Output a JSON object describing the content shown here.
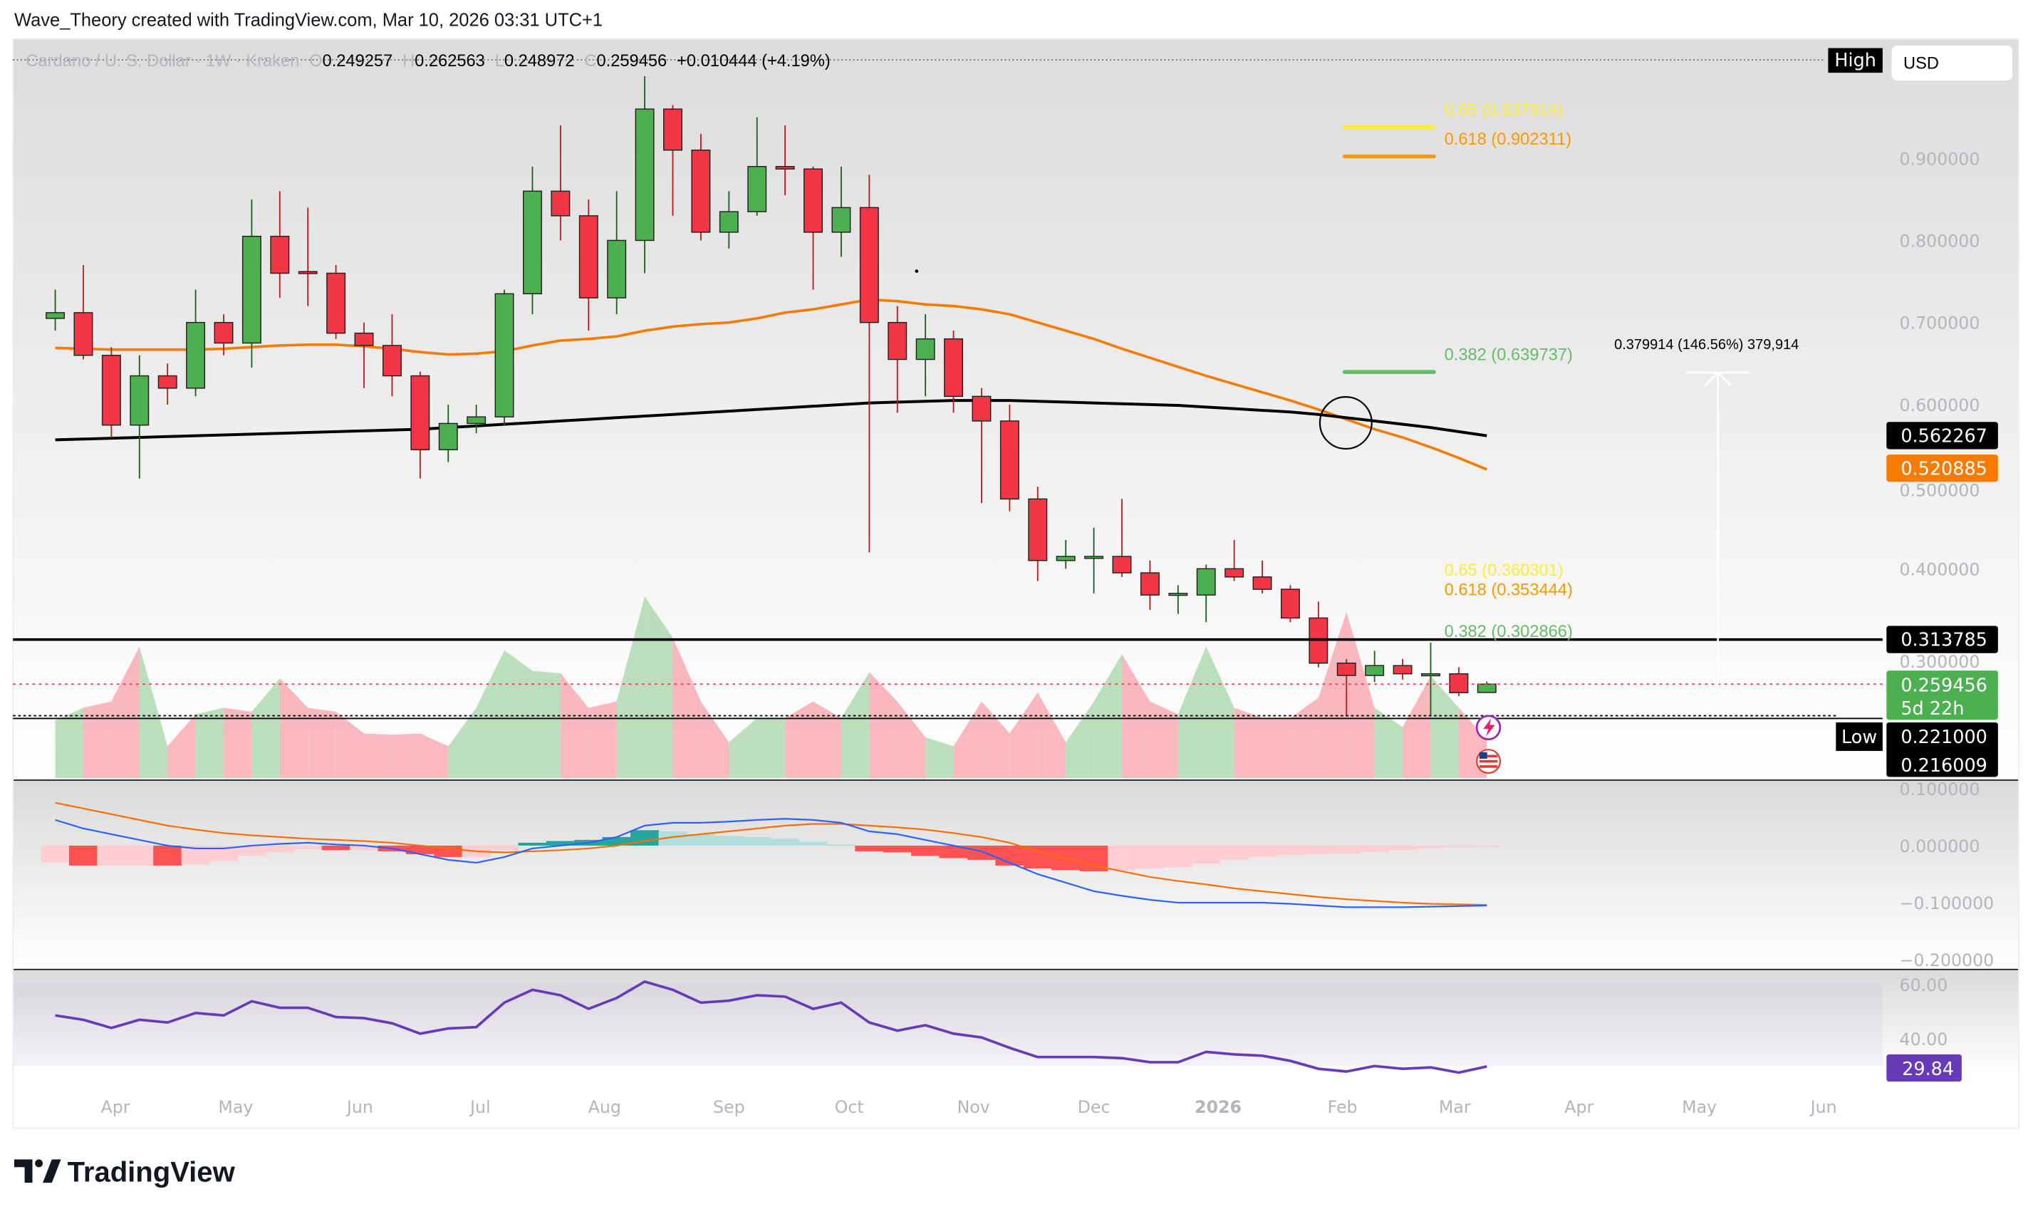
{
  "header": {
    "credit": "Wave_Theory created with TradingView.com, Mar 10, 2026 03:31 UTC+1"
  },
  "legend": {
    "symbol": "Cardano / U. S. Dollar · 1W · Kraken",
    "o_label": "O",
    "open": "0.249257",
    "h_label": "H",
    "high": "0.262563",
    "l_label": "L",
    "low": "0.248972",
    "c_label": "C",
    "close": "0.259456",
    "change": "+0.010444 (+4.19%)"
  },
  "toolbar": {
    "high_label": "High",
    "low_label": "Low",
    "currency": "USD"
  },
  "colors": {
    "up": "#4caf50",
    "down": "#f23645",
    "ema": "#f57c00",
    "sma": "#000000",
    "rsi": "#673ab7",
    "macd": "#2962ff",
    "signal": "#ff6d00",
    "fib_065": "#ffeb3b",
    "fib_0618": "#ff9800",
    "fib_0382": "#66bb6a"
  },
  "price_axis": {
    "ticks": [
      "0.900000",
      "0.800000",
      "0.700000",
      "0.600000",
      "0.500000",
      "0.400000",
      "0.300000"
    ],
    "tick_values": [
      0.9,
      0.8,
      0.7,
      0.6,
      0.5,
      0.4,
      0.3
    ],
    "badges": {
      "sma": "0.562267",
      "ema": "0.520885",
      "resistance": "0.313785",
      "last": "0.259456",
      "countdown": "5d 22h",
      "low_line": "0.221000",
      "low_price": "0.216009"
    }
  },
  "macd_axis": {
    "ticks": [
      "0.100000",
      "0.000000",
      "−0.100000",
      "−0.200000"
    ],
    "tick_values": [
      0.1,
      0,
      -0.1,
      -0.2
    ]
  },
  "rsi_axis": {
    "ticks": [
      "60.00",
      "40.00"
    ],
    "tick_values": [
      60,
      40
    ],
    "current": "29.84"
  },
  "time_axis": {
    "labels": [
      "Apr",
      "May",
      "Jun",
      "Jul",
      "Aug",
      "Sep",
      "Oct",
      "Nov",
      "Dec",
      "2026",
      "Feb",
      "Mar",
      "Apr",
      "May",
      "Jun"
    ],
    "dates": [
      "2025-04-01",
      "2025-05-01",
      "2025-06-01",
      "2025-07-01",
      "2025-08-01",
      "2025-09-01",
      "2025-10-01",
      "2025-11-01",
      "2025-12-01",
      "2026-01-01",
      "2026-02-01",
      "2026-03-01",
      "2026-04-01",
      "2026-05-01",
      "2026-06-01"
    ]
  },
  "fib_upper": [
    {
      "label": "0.65 (0.937914)",
      "price": 0.937914,
      "key": "fib_065"
    },
    {
      "label": "0.618 (0.902311)",
      "price": 0.902311,
      "key": "fib_0618"
    },
    {
      "label": "0.382 (0.639737)",
      "price": 0.639737,
      "key": "fib_0382"
    }
  ],
  "fib_lower": [
    {
      "label": "0.65 (0.360301)",
      "price": 0.360301,
      "key": "fib_065"
    },
    {
      "label": "0.618 (0.353444)",
      "price": 0.353444,
      "key": "fib_0618"
    },
    {
      "label": "0.382 (0.302866)",
      "price": 0.302866,
      "key": "fib_0382"
    }
  ],
  "measure": {
    "label": "0.379914 (146.56%) 379,914",
    "from": 0.259,
    "to": 0.639
  },
  "levels": {
    "resistance": 0.313785,
    "last": 0.259456,
    "low_line": 0.221,
    "low_price": 0.216009
  },
  "chart_data": {
    "type": "candlestick",
    "interval": "1W",
    "price_range": [
      0.1,
      1.0
    ],
    "candles_fields": [
      "date",
      "open",
      "high",
      "low",
      "close"
    ],
    "candles": [
      [
        "2025-03-17",
        0.705,
        0.74,
        0.69,
        0.712
      ],
      [
        "2025-03-24",
        0.712,
        0.77,
        0.655,
        0.66
      ],
      [
        "2025-03-31",
        0.66,
        0.67,
        0.56,
        0.575
      ],
      [
        "2025-04-07",
        0.575,
        0.66,
        0.51,
        0.635
      ],
      [
        "2025-04-14",
        0.635,
        0.65,
        0.6,
        0.62
      ],
      [
        "2025-04-21",
        0.62,
        0.74,
        0.61,
        0.7
      ],
      [
        "2025-04-28",
        0.7,
        0.71,
        0.66,
        0.675
      ],
      [
        "2025-05-05",
        0.675,
        0.85,
        0.645,
        0.805
      ],
      [
        "2025-05-12",
        0.805,
        0.86,
        0.73,
        0.76
      ],
      [
        "2025-05-19",
        0.762,
        0.84,
        0.72,
        0.76
      ],
      [
        "2025-05-26",
        0.76,
        0.77,
        0.68,
        0.687
      ],
      [
        "2025-06-02",
        0.687,
        0.7,
        0.62,
        0.672
      ],
      [
        "2025-06-09",
        0.672,
        0.71,
        0.61,
        0.635
      ],
      [
        "2025-06-16",
        0.635,
        0.64,
        0.51,
        0.545
      ],
      [
        "2025-06-23",
        0.545,
        0.6,
        0.53,
        0.577
      ],
      [
        "2025-06-30",
        0.577,
        0.6,
        0.565,
        0.585
      ],
      [
        "2025-07-07",
        0.585,
        0.74,
        0.575,
        0.735
      ],
      [
        "2025-07-14",
        0.735,
        0.89,
        0.71,
        0.86
      ],
      [
        "2025-07-21",
        0.86,
        0.94,
        0.8,
        0.83
      ],
      [
        "2025-07-28",
        0.83,
        0.85,
        0.69,
        0.73
      ],
      [
        "2025-08-04",
        0.73,
        0.86,
        0.71,
        0.8
      ],
      [
        "2025-08-11",
        0.8,
        1.0,
        0.76,
        0.96
      ],
      [
        "2025-08-18",
        0.96,
        0.965,
        0.83,
        0.91
      ],
      [
        "2025-08-25",
        0.91,
        0.93,
        0.8,
        0.81
      ],
      [
        "2025-09-01",
        0.81,
        0.86,
        0.79,
        0.835
      ],
      [
        "2025-09-08",
        0.835,
        0.95,
        0.83,
        0.89
      ],
      [
        "2025-09-15",
        0.89,
        0.94,
        0.855,
        0.887
      ],
      [
        "2025-09-22",
        0.887,
        0.89,
        0.74,
        0.81
      ],
      [
        "2025-09-29",
        0.81,
        0.89,
        0.78,
        0.84
      ],
      [
        "2025-10-06",
        0.84,
        0.88,
        0.42,
        0.7
      ],
      [
        "2025-10-13",
        0.7,
        0.72,
        0.59,
        0.655
      ],
      [
        "2025-10-20",
        0.655,
        0.71,
        0.61,
        0.68
      ],
      [
        "2025-10-27",
        0.68,
        0.69,
        0.59,
        0.61
      ],
      [
        "2025-11-03",
        0.61,
        0.62,
        0.48,
        0.58
      ],
      [
        "2025-11-10",
        0.58,
        0.6,
        0.47,
        0.485
      ],
      [
        "2025-11-17",
        0.485,
        0.5,
        0.385,
        0.41
      ],
      [
        "2025-11-24",
        0.41,
        0.435,
        0.4,
        0.415
      ],
      [
        "2025-12-01",
        0.415,
        0.45,
        0.37,
        0.415
      ],
      [
        "2025-12-08",
        0.415,
        0.485,
        0.39,
        0.395
      ],
      [
        "2025-12-15",
        0.395,
        0.41,
        0.35,
        0.368
      ],
      [
        "2025-12-22",
        0.368,
        0.38,
        0.345,
        0.37
      ],
      [
        "2025-12-29",
        0.368,
        0.405,
        0.335,
        0.4
      ],
      [
        "2026-01-05",
        0.4,
        0.435,
        0.385,
        0.39
      ],
      [
        "2026-01-12",
        0.39,
        0.41,
        0.37,
        0.375
      ],
      [
        "2026-01-19",
        0.375,
        0.38,
        0.335,
        0.34
      ],
      [
        "2026-01-26",
        0.34,
        0.36,
        0.28,
        0.285
      ],
      [
        "2026-02-02",
        0.285,
        0.29,
        0.22,
        0.27
      ],
      [
        "2026-02-09",
        0.27,
        0.3,
        0.262,
        0.282
      ],
      [
        "2026-02-16",
        0.282,
        0.29,
        0.265,
        0.272
      ],
      [
        "2026-02-23",
        0.27,
        0.31,
        0.22,
        0.272
      ],
      [
        "2026-03-02",
        0.272,
        0.28,
        0.245,
        0.249
      ],
      [
        "2026-03-09",
        0.249257,
        0.262563,
        0.248972,
        0.259456
      ]
    ],
    "ema": [
      0.669,
      0.668,
      0.667,
      0.667,
      0.667,
      0.667,
      0.668,
      0.67,
      0.672,
      0.673,
      0.673,
      0.671,
      0.668,
      0.664,
      0.661,
      0.662,
      0.665,
      0.672,
      0.678,
      0.68,
      0.683,
      0.69,
      0.695,
      0.698,
      0.7,
      0.705,
      0.712,
      0.716,
      0.722,
      0.728,
      0.726,
      0.722,
      0.72,
      0.716,
      0.71,
      0.7,
      0.69,
      0.68,
      0.668,
      0.657,
      0.646,
      0.635,
      0.625,
      0.615,
      0.605,
      0.594,
      0.582,
      0.57,
      0.56,
      0.548,
      0.535,
      0.521
    ],
    "sma": [
      0.557,
      0.558,
      0.559,
      0.56,
      0.561,
      0.562,
      0.563,
      0.564,
      0.565,
      0.566,
      0.567,
      0.568,
      0.569,
      0.57,
      0.572,
      0.574,
      0.576,
      0.578,
      0.58,
      0.582,
      0.584,
      0.586,
      0.588,
      0.59,
      0.592,
      0.594,
      0.596,
      0.598,
      0.6,
      0.602,
      0.603,
      0.604,
      0.605,
      0.605,
      0.605,
      0.604,
      0.603,
      0.602,
      0.601,
      0.6,
      0.599,
      0.597,
      0.595,
      0.593,
      0.591,
      0.588,
      0.584,
      0.58,
      0.576,
      0.572,
      0.567,
      0.562
    ],
    "volume": [
      45,
      55,
      60,
      103,
      25,
      50,
      55,
      52,
      78,
      55,
      52,
      35,
      34,
      35,
      25,
      55,
      100,
      84,
      82,
      55,
      60,
      142,
      110,
      60,
      28,
      47,
      47,
      60,
      47,
      83,
      60,
      32,
      25,
      60,
      35,
      67,
      28,
      60,
      97,
      60,
      50,
      103,
      55,
      47,
      47,
      63,
      130,
      55,
      40,
      80,
      55,
      30
    ],
    "macd": [
      0.045,
      0.03,
      0.02,
      0.01,
      0,
      -0.005,
      -0.005,
      0,
      0.003,
      0.005,
      0.002,
      0,
      -0.005,
      -0.015,
      -0.025,
      -0.03,
      -0.02,
      -0.005,
      0,
      0.005,
      0.015,
      0.035,
      0.04,
      0.04,
      0.042,
      0.045,
      0.047,
      0.045,
      0.04,
      0.025,
      0.02,
      0.01,
      0,
      -0.01,
      -0.03,
      -0.05,
      -0.065,
      -0.08,
      -0.088,
      -0.095,
      -0.1,
      -0.1,
      -0.1,
      -0.1,
      -0.102,
      -0.105,
      -0.108,
      -0.108,
      -0.108,
      -0.107,
      -0.106,
      -0.105
    ],
    "signal": [
      0.075,
      0.065,
      0.055,
      0.045,
      0.035,
      0.028,
      0.022,
      0.018,
      0.015,
      0.012,
      0.01,
      0.008,
      0.005,
      0,
      -0.005,
      -0.01,
      -0.012,
      -0.01,
      -0.008,
      -0.005,
      0,
      0.008,
      0.015,
      0.02,
      0.025,
      0.03,
      0.035,
      0.038,
      0.038,
      0.035,
      0.032,
      0.028,
      0.022,
      0.015,
      0.005,
      -0.01,
      -0.022,
      -0.035,
      -0.045,
      -0.055,
      -0.062,
      -0.068,
      -0.075,
      -0.08,
      -0.085,
      -0.09,
      -0.094,
      -0.097,
      -0.1,
      -0.102,
      -0.103,
      -0.104
    ],
    "rsi": [
      48.6,
      47,
      44,
      47,
      46,
      49.5,
      48.6,
      53.8,
      51.4,
      51.4,
      48,
      47.6,
      45.7,
      41.9,
      43.8,
      44.3,
      53.3,
      58,
      56,
      51,
      55,
      61,
      58,
      53.3,
      54,
      56,
      55.5,
      51,
      53.3,
      46,
      43,
      45,
      41.9,
      40.5,
      36.7,
      33.3,
      33.3,
      33.3,
      32.9,
      31.4,
      31.4,
      35.2,
      34.3,
      33.8,
      31.9,
      29,
      28,
      30,
      29,
      29.5,
      27.6,
      29.84
    ]
  },
  "footer": {
    "brand": "TradingView"
  }
}
